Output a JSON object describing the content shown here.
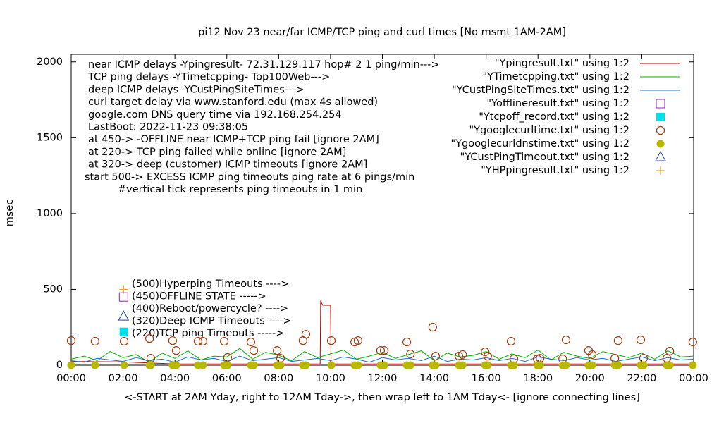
{
  "chart_data": {
    "type": "line",
    "title": "pi12 Nov 23  near/far ICMP/TCP ping and curl times [No msmt 1AM-2AM]",
    "ylabel": "msec",
    "xlabel": "<-START at 2AM Yday, right to 12AM Tday->, then wrap left to 1AM Tday<- [ignore connecting lines]",
    "xlim": [
      0,
      24
    ],
    "xticks": [
      {
        "value": 0,
        "label": "00:00"
      },
      {
        "value": 2,
        "label": "02:00"
      },
      {
        "value": 4,
        "label": "04:00"
      },
      {
        "value": 6,
        "label": "06:00"
      },
      {
        "value": 8,
        "label": "08:00"
      },
      {
        "value": 10,
        "label": "10:00"
      },
      {
        "value": 12,
        "label": "12:00"
      },
      {
        "value": 14,
        "label": "14:00"
      },
      {
        "value": 16,
        "label": "16:00"
      },
      {
        "value": 18,
        "label": "18:00"
      },
      {
        "value": 20,
        "label": "20:00"
      },
      {
        "value": 22,
        "label": "22:00"
      },
      {
        "value": 24,
        "label": "00:00"
      }
    ],
    "ylim": [
      0,
      2050
    ],
    "yticks": [
      0,
      500,
      1000,
      1500,
      2000
    ],
    "legend": "top-right",
    "annotations": [
      "near ICMP delays -Ypingresult- 72.31.129.117 hop# 2  1 ping/min--->",
      "TCP ping delays -YTimetcpping- Top100Web--->",
      "deep ICMP delays -YCustPingSiteTimes--->",
      "curl target delay via www.stanford.edu (max 4s allowed)",
      "google.com DNS query time via 192.168.254.254",
      "LastBoot: 2022-11-23 09:38:05",
      "at 450-> -OFFLINE near ICMP+TCP ping fail [ignore 2AM]",
      "at 220-> TCP ping failed while online [ignore 2AM]",
      "at 320-> deep (customer) ICMP timeouts [ignore 2AM]",
      "start 500-> EXCESS ICMP ping timeouts ping rate at 6 pings/min",
      "#vertical tick represents ping timeouts in 1 min"
    ],
    "marker_labels": [
      "(500)Hyperping Timeouts ---->",
      "(450)OFFLINE STATE ----->",
      "(400)Reboot/powercycle? ---->",
      "(320)Deep ICMP Timeouts ---->",
      "(220)TCP ping Timeouts ----->"
    ],
    "series": [
      {
        "name": "\"Ypingresult.txt\" using 1:2",
        "color": "#c00000",
        "marker": "line",
        "x": [
          0,
          2,
          4,
          6,
          8,
          9.6,
          9.62,
          9.7,
          10,
          10.02,
          12,
          14,
          16,
          18,
          20,
          22,
          24
        ],
        "values": [
          25,
          22,
          8,
          8,
          8,
          8,
          420,
          395,
          395,
          8,
          8,
          8,
          8,
          8,
          8,
          8,
          8
        ]
      },
      {
        "name": "\"YTimetcpping.txt\" using 1:2",
        "color": "#00b000",
        "marker": "line",
        "x": [
          0,
          0.5,
          1,
          1.5,
          2,
          2.5,
          3,
          3.5,
          4,
          4.5,
          5,
          5.5,
          6,
          6.5,
          7,
          7.5,
          8,
          8.5,
          9,
          9.5,
          10,
          10.5,
          11,
          11.5,
          12,
          12.5,
          13,
          13.5,
          14,
          14.5,
          15,
          15.5,
          16,
          16.5,
          17,
          17.5,
          18,
          18.5,
          19,
          19.5,
          20,
          20.5,
          21,
          21.5,
          22,
          22.5,
          23,
          23.5,
          24
        ],
        "values": [
          40,
          60,
          30,
          90,
          50,
          70,
          20,
          80,
          45,
          95,
          35,
          60,
          55,
          110,
          40,
          85,
          65,
          30,
          90,
          50,
          75,
          100,
          40,
          60,
          85,
          45,
          70,
          95,
          30,
          80,
          55,
          65,
          90,
          40,
          75,
          50,
          100,
          35,
          85,
          60,
          45,
          90,
          70,
          50,
          80,
          40,
          95,
          55,
          60
        ]
      },
      {
        "name": "\"YCustPingSiteTimes.txt\" using 1:2",
        "color": "#1a6fd0",
        "marker": "line",
        "x": [
          0,
          0.5,
          1,
          1.5,
          2,
          2.5,
          3,
          3.5,
          4,
          4.5,
          5,
          5.5,
          6,
          6.5,
          7,
          7.5,
          8,
          8.5,
          9,
          9.5,
          10,
          10.5,
          11,
          11.5,
          12,
          12.5,
          13,
          13.5,
          14,
          14.5,
          15,
          15.5,
          16,
          16.5,
          17,
          17.5,
          18,
          18.5,
          19,
          19.5,
          20,
          20.5,
          21,
          21.5,
          22,
          22.5,
          23,
          23.5,
          24
        ],
        "values": [
          30,
          20,
          45,
          35,
          25,
          50,
          30,
          40,
          20,
          55,
          35,
          45,
          25,
          60,
          30,
          40,
          50,
          25,
          35,
          45,
          30,
          55,
          40,
          20,
          50,
          35,
          45,
          30,
          60,
          25,
          40,
          35,
          50,
          30,
          45,
          25,
          55,
          40,
          30,
          50,
          35,
          45,
          25,
          40,
          55,
          30,
          50,
          35,
          40
        ]
      },
      {
        "name": "\"Yofflineresult.txt\" using 1:2",
        "color": "#a020c0",
        "marker": "open-square",
        "x": [
          2.02
        ],
        "values": [
          450
        ]
      },
      {
        "name": "\"Ytcpoff_record.txt\" using 1:2",
        "color": "#00e0e8",
        "marker": "filled-square",
        "x": [
          2.03
        ],
        "values": [
          220
        ]
      },
      {
        "name": "\"Ygooglecurltime.txt\" using 1:2",
        "color": "#a03c10",
        "marker": "open-circle",
        "x": [
          0,
          0.92,
          2.04,
          3.02,
          3.07,
          3.91,
          4.05,
          4.89,
          5.08,
          5.9,
          6.03,
          6.93,
          7.04,
          7.94,
          8.07,
          8.94,
          9.05,
          10.03,
          10.93,
          11.06,
          11.93,
          12.07,
          12.94,
          13.08,
          13.94,
          14.05,
          14.95,
          15.09,
          15.96,
          16.06,
          16.96,
          17.07,
          17.97,
          18.08,
          18.95,
          19.08,
          19.95,
          20.09,
          20.96,
          21.09,
          21.96,
          22.07,
          22.97,
          23.08,
          23.97
        ],
        "values": [
          162,
          158,
          158,
          176,
          46,
          162,
          97,
          158,
          158,
          158,
          51,
          153,
          97,
          97,
          46,
          162,
          204,
          162,
          153,
          162,
          97,
          97,
          153,
          74,
          251,
          60,
          60,
          70,
          88,
          60,
          158,
          42,
          42,
          46,
          42,
          167,
          97,
          70,
          46,
          162,
          167,
          46,
          46,
          93,
          153
        ]
      },
      {
        "name": "\"Ygooglecurldnstime.txt\" using 1:2",
        "color": "#b8b800",
        "marker": "filled-circle",
        "x": [
          0,
          0.92,
          2.04,
          3.02,
          3.07,
          3.91,
          4.05,
          4.89,
          5.08,
          5.9,
          6.03,
          6.93,
          7.04,
          7.94,
          8.07,
          8.94,
          9.05,
          10.03,
          10.93,
          11.06,
          11.93,
          12.07,
          12.94,
          13.08,
          13.94,
          14.05,
          14.95,
          15.09,
          15.96,
          16.06,
          16.96,
          17.07,
          17.97,
          18.08,
          18.95,
          19.08,
          19.95,
          20.09,
          20.96,
          21.09,
          21.96,
          22.07,
          22.97,
          23.08,
          23.97
        ],
        "values": [
          0,
          0,
          0,
          0,
          0,
          0,
          0,
          0,
          0,
          0,
          0,
          0,
          0,
          0,
          0,
          0,
          0,
          0,
          0,
          0,
          0,
          0,
          0,
          0,
          0,
          0,
          0,
          0,
          0,
          0,
          0,
          0,
          0,
          0,
          0,
          0,
          0,
          0,
          0,
          0,
          0,
          0,
          0,
          0,
          0
        ]
      },
      {
        "name": "\"YCustPingTimeout.txt\" using 1:2",
        "color": "#2040a0",
        "marker": "open-triangle",
        "x": [
          2.02
        ],
        "values": [
          320
        ]
      },
      {
        "name": "\"YHPpingresult.txt\" using 1:2",
        "color": "#f0a020",
        "marker": "plus",
        "x": [
          2.02
        ],
        "values": [
          500
        ]
      }
    ]
  }
}
